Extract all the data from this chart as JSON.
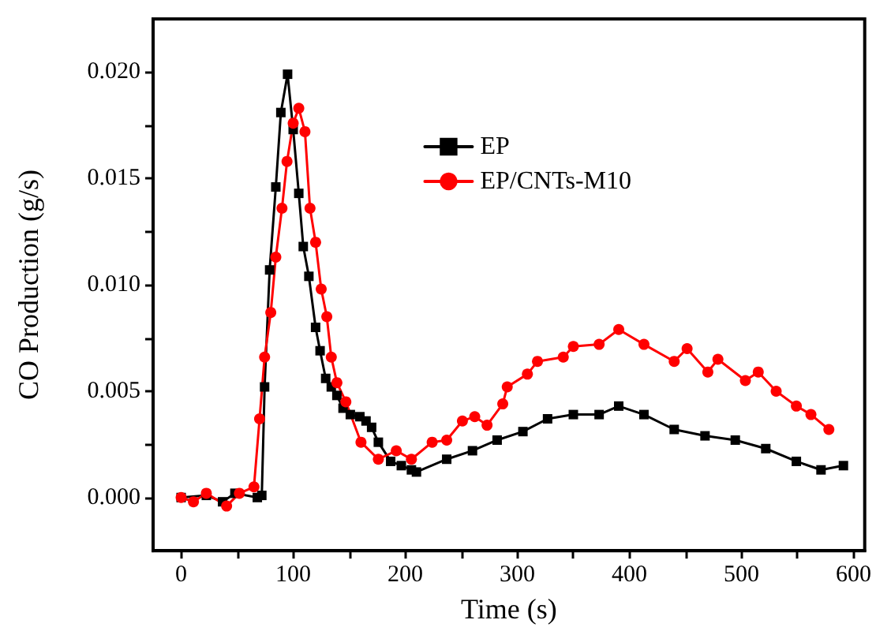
{
  "chart_data": {
    "type": "line",
    "xlabel": "Time (s)",
    "ylabel": "CO Production (g/s)",
    "xlim": [
      -25,
      610
    ],
    "xticks": [
      0,
      100,
      200,
      300,
      400,
      500,
      600
    ],
    "ylim": [
      -0.0025,
      0.0225
    ],
    "yticks": [
      {
        "value": 0,
        "label": "0.000"
      },
      {
        "value": 0.005,
        "label": "0.005"
      },
      {
        "value": 0.01,
        "label": "0.010"
      },
      {
        "value": 0.015,
        "label": "0.015"
      },
      {
        "value": 0.02,
        "label": "0.020"
      }
    ],
    "grid": false,
    "legend": "top right",
    "line_style": "solid",
    "series": [
      {
        "name": "EP",
        "color": "#000000",
        "marker": "square",
        "x": [
          0,
          22.5,
          37,
          48,
          68,
          72,
          74.5,
          79,
          84.5,
          89,
          95,
          100,
          105,
          109,
          114,
          120,
          124,
          129,
          134,
          139,
          144.5,
          151,
          159.5,
          165,
          170,
          176,
          187,
          196.5,
          205.5,
          210,
          237,
          260,
          282,
          305,
          327,
          350,
          373,
          390.5,
          413,
          440,
          467.5,
          494.5,
          521.7,
          549,
          571,
          591
        ],
        "values": [
          0,
          0.0001,
          -0.0002,
          0.0002,
          0,
          0.0001,
          0.0052,
          0.0107,
          0.0146,
          0.0181,
          0.0199,
          0.0173,
          0.0143,
          0.0118,
          0.0104,
          0.008,
          0.0069,
          0.0056,
          0.0052,
          0.0048,
          0.0042,
          0.0039,
          0.0038,
          0.0036,
          0.0033,
          0.0026,
          0.0017,
          0.0015,
          0.0013,
          0.0012,
          0.0018,
          0.0022,
          0.0027,
          0.0031,
          0.0037,
          0.0039,
          0.0039,
          0.0043,
          0.0039,
          0.0032,
          0.0029,
          0.0027,
          0.0023,
          0.0017,
          0.0013,
          0.0015
        ]
      },
      {
        "name": "EP/CNTs-M10",
        "color": "#ff0000",
        "marker": "circle",
        "x": [
          0,
          11,
          22.5,
          40.6,
          52,
          65,
          70,
          74.5,
          80,
          84.5,
          90,
          94.5,
          100,
          105,
          110.5,
          115,
          120,
          125,
          130,
          134,
          139,
          147,
          160.5,
          176,
          192,
          205.5,
          224,
          237,
          251,
          262,
          273,
          287,
          291,
          309,
          318,
          341,
          350,
          373,
          390.5,
          413,
          440,
          451.5,
          470,
          479,
          503.5,
          515,
          531,
          549,
          562,
          578
        ],
        "values": [
          0,
          -0.0002,
          0.0002,
          -0.0004,
          0.0002,
          0.0005,
          0.0037,
          0.0066,
          0.0087,
          0.0113,
          0.0136,
          0.0158,
          0.0176,
          0.0183,
          0.0172,
          0.0136,
          0.012,
          0.0098,
          0.0085,
          0.0066,
          0.0054,
          0.0045,
          0.0026,
          0.0018,
          0.0022,
          0.0018,
          0.0026,
          0.0027,
          0.0036,
          0.0038,
          0.0034,
          0.0044,
          0.0052,
          0.0058,
          0.0064,
          0.0066,
          0.0071,
          0.0072,
          0.0079,
          0.0072,
          0.0064,
          0.007,
          0.0059,
          0.0065,
          0.0055,
          0.0059,
          0.005,
          0.0043,
          0.0039,
          0.0032
        ]
      }
    ]
  }
}
